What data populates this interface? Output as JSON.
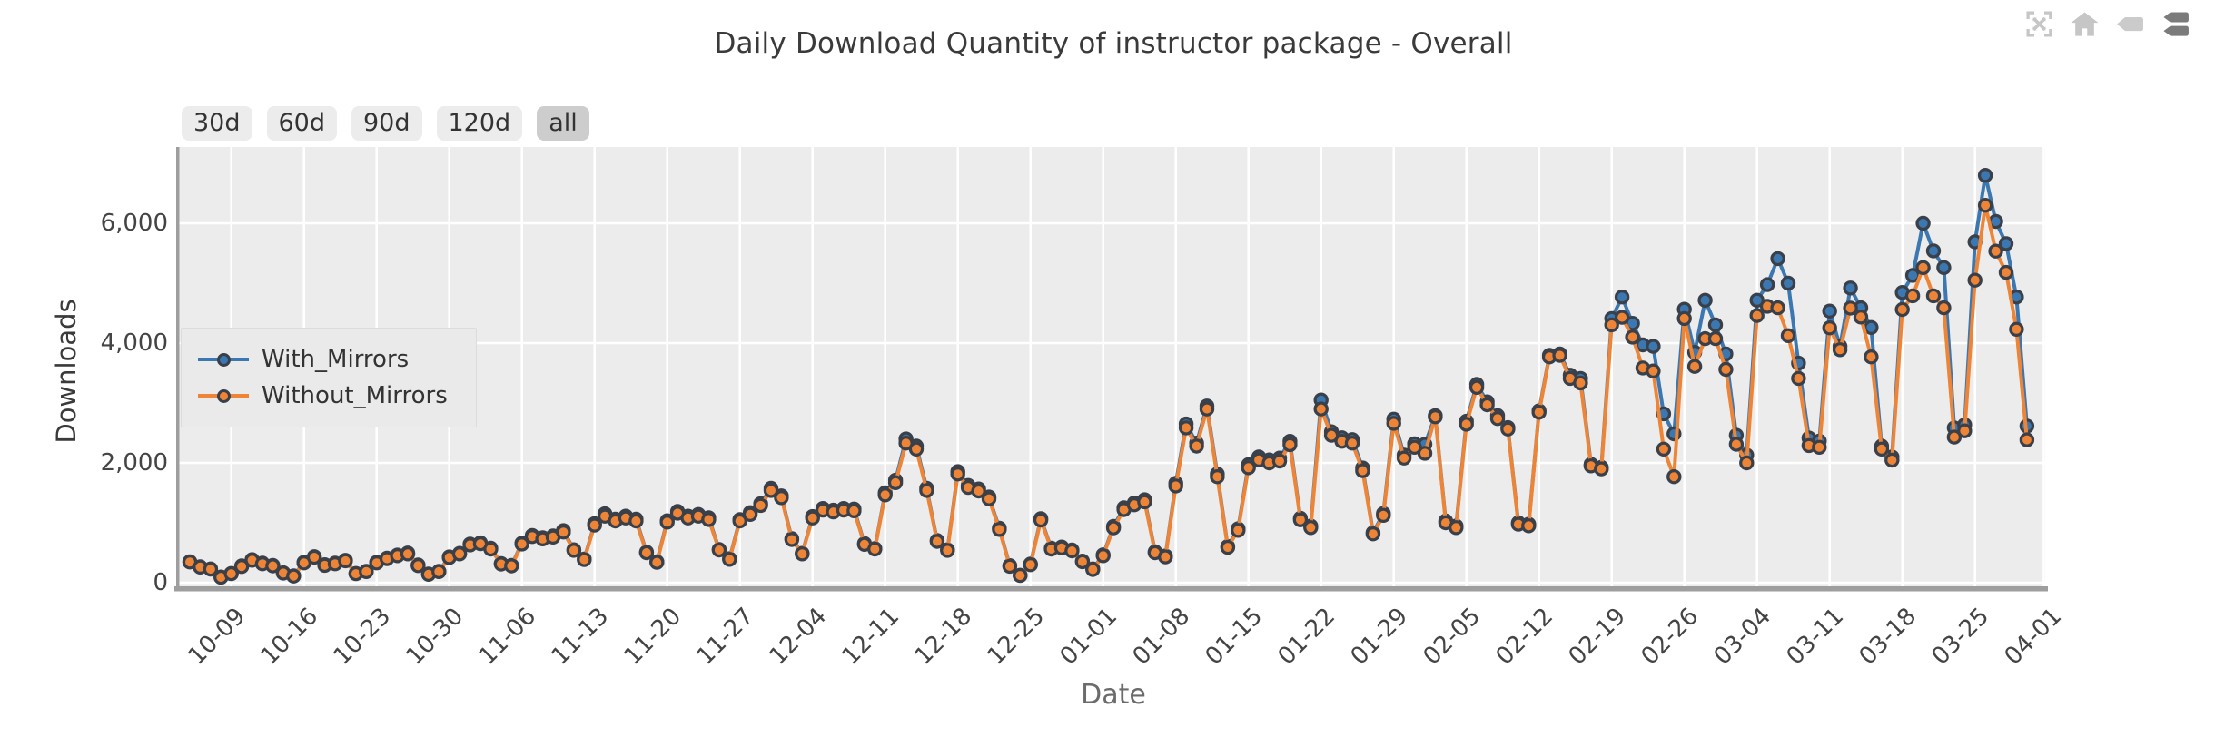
{
  "title": "Daily Download Quantity of instructor package - Overall",
  "toolbar": {
    "icons": [
      {
        "name": "autoscale",
        "color": "#c6c6c6",
        "active": false
      },
      {
        "name": "reset-axes-home",
        "color": "#c6c6c6",
        "active": false
      },
      {
        "name": "hover-closest-tag",
        "color": "#cbcbcb",
        "active": false
      },
      {
        "name": "hover-compare-tags",
        "color": "#7b7b7b",
        "active": true
      }
    ]
  },
  "range_buttons": {
    "options": [
      "30d",
      "60d",
      "90d",
      "120d",
      "all"
    ],
    "active": "all"
  },
  "legend": {
    "items": [
      {
        "label": "With_Mirrors",
        "color": "#3b77b0"
      },
      {
        "label": "Without_Mirrors",
        "color": "#ee8435"
      }
    ]
  },
  "colors": {
    "page_bg": "#ffffff",
    "plot_bg": "#ececec",
    "grid": "#ffffff",
    "spine": "#9e9e9e",
    "with_mirrors": "#3b77b0",
    "without_mirrors": "#ee8435",
    "marker_edge": "#3a4049",
    "button_bg": "#ececec",
    "button_active_bg": "#cdcdcd",
    "legend_bg": "#e9e9e9"
  },
  "chart_data": {
    "type": "line",
    "title": "Daily Download Quantity of instructor package - Overall",
    "xlabel": "Date",
    "ylabel": "Downloads",
    "x_unit": "day",
    "x": [
      "10-05",
      "10-06",
      "10-07",
      "10-08",
      "10-09",
      "10-10",
      "10-11",
      "10-12",
      "10-13",
      "10-14",
      "10-15",
      "10-16",
      "10-17",
      "10-18",
      "10-19",
      "10-20",
      "10-21",
      "10-22",
      "10-23",
      "10-24",
      "10-25",
      "10-26",
      "10-27",
      "10-28",
      "10-29",
      "10-30",
      "10-31",
      "11-01",
      "11-02",
      "11-03",
      "11-04",
      "11-05",
      "11-06",
      "11-07",
      "11-08",
      "11-09",
      "11-10",
      "11-11",
      "11-12",
      "11-13",
      "11-14",
      "11-15",
      "11-16",
      "11-17",
      "11-18",
      "11-19",
      "11-20",
      "11-21",
      "11-22",
      "11-23",
      "11-24",
      "11-25",
      "11-26",
      "11-27",
      "11-28",
      "11-29",
      "11-30",
      "12-01",
      "12-02",
      "12-03",
      "12-04",
      "12-05",
      "12-06",
      "12-07",
      "12-08",
      "12-09",
      "12-10",
      "12-11",
      "12-12",
      "12-13",
      "12-14",
      "12-15",
      "12-16",
      "12-17",
      "12-18",
      "12-19",
      "12-20",
      "12-21",
      "12-22",
      "12-23",
      "12-24",
      "12-25",
      "12-26",
      "12-27",
      "12-28",
      "12-29",
      "12-30",
      "12-31",
      "01-01",
      "01-02",
      "01-03",
      "01-04",
      "01-05",
      "01-06",
      "01-07",
      "01-08",
      "01-09",
      "01-10",
      "01-11",
      "01-12",
      "01-13",
      "01-14",
      "01-15",
      "01-16",
      "01-17",
      "01-18",
      "01-19",
      "01-20",
      "01-21",
      "01-22",
      "01-23",
      "01-24",
      "01-25",
      "01-26",
      "01-27",
      "01-28",
      "01-29",
      "01-30",
      "01-31",
      "02-01",
      "02-02",
      "02-03",
      "02-04",
      "02-05",
      "02-06",
      "02-07",
      "02-08",
      "02-09",
      "02-10",
      "02-11",
      "02-12",
      "02-13",
      "02-14",
      "02-15",
      "02-16",
      "02-17",
      "02-18",
      "02-19",
      "02-20",
      "02-21",
      "02-22",
      "02-23",
      "02-24",
      "02-25",
      "02-26",
      "02-27",
      "02-28",
      "02-29",
      "03-01",
      "03-02",
      "03-03",
      "03-04",
      "03-05",
      "03-06",
      "03-07",
      "03-08",
      "03-09",
      "03-10",
      "03-11",
      "03-12",
      "03-13",
      "03-14",
      "03-15",
      "03-16",
      "03-17",
      "03-18",
      "03-19",
      "03-20",
      "03-21",
      "03-22",
      "03-23",
      "03-24",
      "03-25",
      "03-26",
      "03-27",
      "03-28",
      "03-29",
      "03-30"
    ],
    "series": [
      {
        "name": "With_Mirrors",
        "color": "#3b77b0",
        "values": [
          350,
          265,
          230,
          95,
          155,
          280,
          385,
          325,
          290,
          165,
          115,
          340,
          435,
          300,
          325,
          375,
          155,
          190,
          340,
          410,
          460,
          495,
          295,
          145,
          190,
          430,
          490,
          645,
          665,
          575,
          320,
          290,
          660,
          790,
          750,
          780,
          870,
          550,
          395,
          985,
          1150,
          1060,
          1110,
          1060,
          510,
          350,
          1035,
          1190,
          1110,
          1140,
          1085,
          555,
          400,
          1055,
          1170,
          1320,
          1575,
          1450,
          735,
          490,
          1105,
          1240,
          1210,
          1240,
          1230,
          655,
          570,
          1500,
          1710,
          2400,
          2280,
          1575,
          705,
          550,
          1855,
          1625,
          1565,
          1430,
          910,
          285,
          125,
          310,
          1070,
          575,
          595,
          545,
          360,
          230,
          465,
          940,
          1250,
          1330,
          1385,
          515,
          445,
          1660,
          2650,
          2330,
          2950,
          1815,
          605,
          900,
          1970,
          2100,
          2050,
          2080,
          2360,
          1075,
          945,
          3050,
          2520,
          2420,
          2390,
          1915,
          835,
          1155,
          2730,
          2130,
          2320,
          2310,
          2790,
          1030,
          945,
          2695,
          3310,
          3020,
          2790,
          2590,
          1000,
          975,
          2870,
          3795,
          3820,
          3465,
          3410,
          1975,
          1925,
          4410,
          4770,
          4330,
          3970,
          3945,
          2820,
          2485,
          4565,
          3845,
          4715,
          4305,
          3820,
          2460,
          2130,
          4715,
          4975,
          5410,
          5000,
          3665,
          2415,
          2365,
          4535,
          3945,
          4920,
          4590,
          4260,
          2280,
          2100,
          4845,
          5130,
          6000,
          5540,
          5260,
          2585,
          2635,
          5690,
          6800,
          6030,
          5660,
          4770,
          2615
        ]
      },
      {
        "name": "Without_Mirrors",
        "color": "#ee8435",
        "values": [
          345,
          260,
          225,
          90,
          150,
          270,
          375,
          315,
          280,
          160,
          110,
          330,
          425,
          290,
          315,
          365,
          150,
          185,
          330,
          400,
          450,
          480,
          285,
          140,
          185,
          420,
          480,
          630,
          650,
          560,
          310,
          280,
          645,
          770,
          730,
          760,
          845,
          540,
          385,
          960,
          1110,
          1030,
          1080,
          1030,
          500,
          340,
          1010,
          1160,
          1080,
          1110,
          1055,
          545,
          390,
          1030,
          1140,
          1290,
          1540,
          1420,
          720,
          480,
          1080,
          1210,
          1180,
          1210,
          1200,
          640,
          560,
          1465,
          1670,
          2330,
          2230,
          1540,
          690,
          540,
          1815,
          1590,
          1530,
          1400,
          890,
          275,
          120,
          300,
          1045,
          560,
          580,
          530,
          350,
          220,
          450,
          915,
          1220,
          1300,
          1350,
          500,
          430,
          1615,
          2585,
          2280,
          2900,
          1770,
          590,
          875,
          1920,
          2050,
          2000,
          2030,
          2305,
          1050,
          920,
          2900,
          2460,
          2360,
          2330,
          1870,
          815,
          1125,
          2660,
          2080,
          2260,
          2160,
          2770,
          1000,
          920,
          2645,
          3260,
          2970,
          2740,
          2565,
          975,
          950,
          2845,
          3770,
          3795,
          3410,
          3335,
          1950,
          1900,
          4305,
          4430,
          4100,
          3585,
          3535,
          2230,
          1770,
          4410,
          3610,
          4075,
          4075,
          3560,
          2310,
          2000,
          4460,
          4615,
          4590,
          4125,
          3410,
          2290,
          2260,
          4255,
          3890,
          4585,
          4435,
          3770,
          2230,
          2045,
          4560,
          4790,
          5260,
          4790,
          4590,
          2430,
          2535,
          5050,
          6300,
          5535,
          5180,
          4230,
          2385
        ]
      }
    ],
    "yticks": [
      0,
      2000,
      4000,
      6000
    ],
    "ytick_labels": [
      "0",
      "2,000",
      "4,000",
      "6,000"
    ],
    "xtick_labels": [
      "10-09",
      "10-16",
      "10-23",
      "10-30",
      "11-06",
      "11-13",
      "11-20",
      "11-27",
      "12-04",
      "12-11",
      "12-18",
      "12-25",
      "01-01",
      "01-08",
      "01-15",
      "01-22",
      "01-29",
      "02-05",
      "02-12",
      "02-19",
      "02-26",
      "03-04",
      "03-11",
      "03-18",
      "03-25",
      "04-01"
    ],
    "ylim": [
      -120,
      7280
    ],
    "grid": true,
    "legend_position": "center left"
  }
}
